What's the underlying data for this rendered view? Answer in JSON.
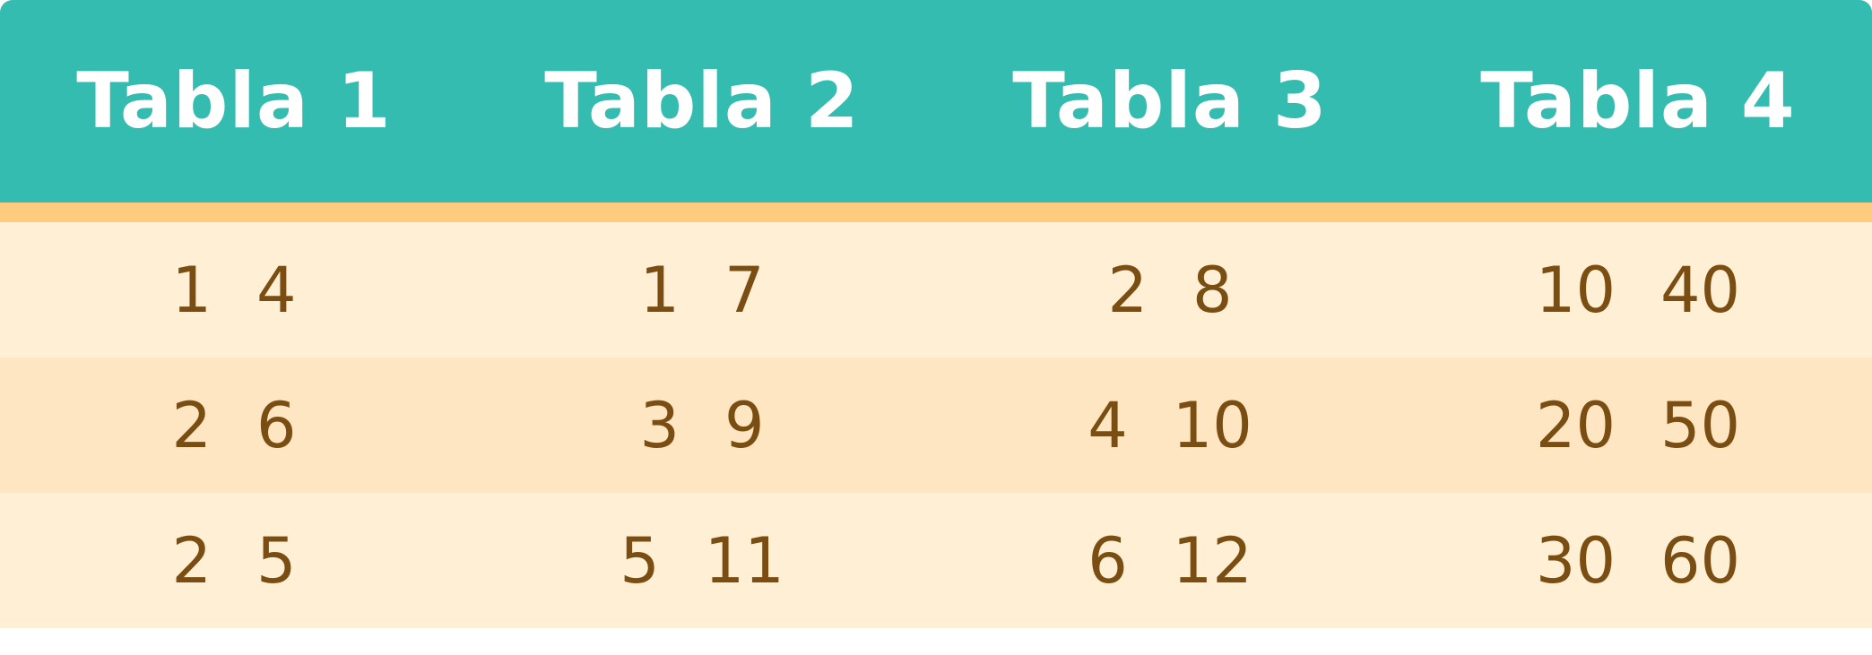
{
  "colors": {
    "header_bg": "#34bcb1",
    "header_text": "#ffffff",
    "accent_line": "#ffcb7f",
    "row_light": "#ffefd4",
    "row_dark": "#ffe6c2",
    "cell_text": "#7a4e12"
  },
  "headers": [
    "Tabla 1",
    "Tabla 2",
    "Tabla 3",
    "Tabla 4"
  ],
  "rows": [
    [
      [
        "1",
        "4"
      ],
      [
        "1",
        "7"
      ],
      [
        "2",
        "8"
      ],
      [
        "10",
        "40"
      ]
    ],
    [
      [
        "2",
        "6"
      ],
      [
        "3",
        "9"
      ],
      [
        "4",
        "10"
      ],
      [
        "20",
        "50"
      ]
    ],
    [
      [
        "2",
        "5"
      ],
      [
        "5",
        "11"
      ],
      [
        "6",
        "12"
      ],
      [
        "30",
        "60"
      ]
    ]
  ]
}
